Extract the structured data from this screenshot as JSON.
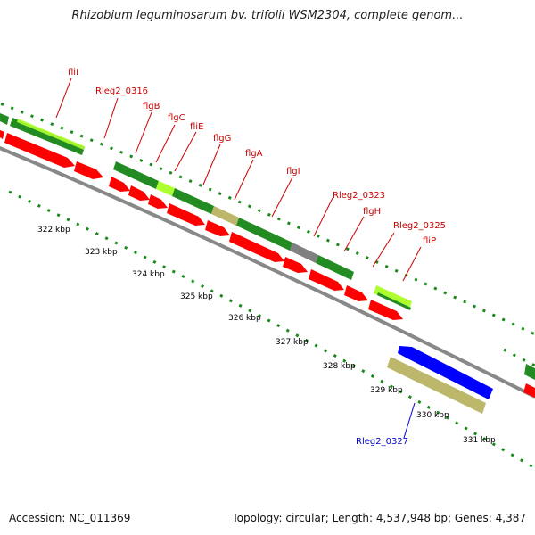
{
  "title": "Rhizobium leguminosarum bv. trifolii WSM2304, complete genom...",
  "footer": {
    "accession": "Accession: NC_011369",
    "topology": "Topology: circular; Length: 4,537,948 bp; Genes: 4,387"
  },
  "colors": {
    "cds_red": "#ff0000",
    "gene_green": "#228b22",
    "light_green": "#adff2f",
    "tan": "#bdb76b",
    "grey": "#808080",
    "blue": "#0000ff",
    "label_red": "#cc0000",
    "label_blue": "#0000cc",
    "backbone": "#888888",
    "tick_green": "#1a8a1a"
  },
  "scale": {
    "ticks": [
      {
        "label": "322 kbp"
      },
      {
        "label": "323 kbp"
      },
      {
        "label": "324 kbp"
      },
      {
        "label": "325 kbp"
      },
      {
        "label": "326 kbp"
      },
      {
        "label": "327 kbp"
      },
      {
        "label": "328 kbp"
      },
      {
        "label": "329 kbp"
      },
      {
        "label": "330 kbp"
      },
      {
        "label": "331 kbp"
      }
    ]
  },
  "labels": [
    {
      "text": "fliI",
      "color": "label_red"
    },
    {
      "text": "Rleg2_0316",
      "color": "label_red"
    },
    {
      "text": "flgB",
      "color": "label_red"
    },
    {
      "text": "flgC",
      "color": "label_red"
    },
    {
      "text": "fliE",
      "color": "label_red"
    },
    {
      "text": "flgG",
      "color": "label_red"
    },
    {
      "text": "flgA",
      "color": "label_red"
    },
    {
      "text": "flgI",
      "color": "label_red"
    },
    {
      "text": "Rleg2_0323",
      "color": "label_red"
    },
    {
      "text": "flgH",
      "color": "label_red"
    },
    {
      "text": "Rleg2_0325",
      "color": "label_red"
    },
    {
      "text": "fliP",
      "color": "label_red"
    },
    {
      "text": "Rleg2_0327",
      "color": "label_blue"
    }
  ]
}
